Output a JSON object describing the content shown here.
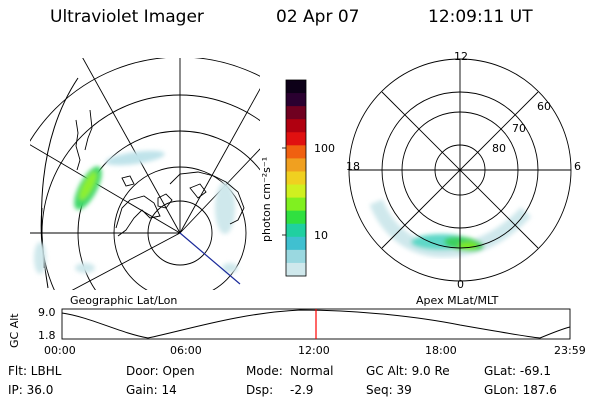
{
  "header": {
    "title": "Ultraviolet Imager",
    "date": "02 Apr 07",
    "time": "12:09:11 UT"
  },
  "colorbar": {
    "unit_label": "photon cm⁻²s⁻¹",
    "ticks": [
      "100",
      "10"
    ],
    "colors": [
      "#0d0018",
      "#2a0030",
      "#700020",
      "#b00010",
      "#e01010",
      "#f06010",
      "#f0a020",
      "#f0d020",
      "#d0f020",
      "#80f020",
      "#30e040",
      "#20d0a0",
      "#40c0d0",
      "#9ad8e0",
      "#cfe8ec"
    ]
  },
  "geo_map": {
    "caption": "Geographic Lat/Lon"
  },
  "polar_map": {
    "caption": "Apex MLat/MLT",
    "mlt_labels": {
      "top": "12",
      "left": "18",
      "right": "6",
      "bottom": "0"
    },
    "lat_labels": [
      "60",
      "70",
      "80"
    ]
  },
  "altitude_plot": {
    "ylabel": "GC Alt",
    "yticks": [
      "9.0",
      "1.8"
    ],
    "xticks": [
      "00:00",
      "06:00",
      "12:00",
      "18:00",
      "23:59"
    ],
    "marker_color": "#ff0000"
  },
  "info": {
    "filter": "Flt: LBHL",
    "door": "Door: Open",
    "mode_label": "Mode:",
    "mode_value": "Normal",
    "gc_alt": "GC Alt: 9.0 Re",
    "glat": "GLat: -69.1",
    "ip": "IP: 36.0",
    "gain": "Gain: 14",
    "dsp_label": "Dsp:",
    "dsp_value": "-2.9",
    "seq": "Seq: 39",
    "glon": "GLon: 187.6"
  }
}
